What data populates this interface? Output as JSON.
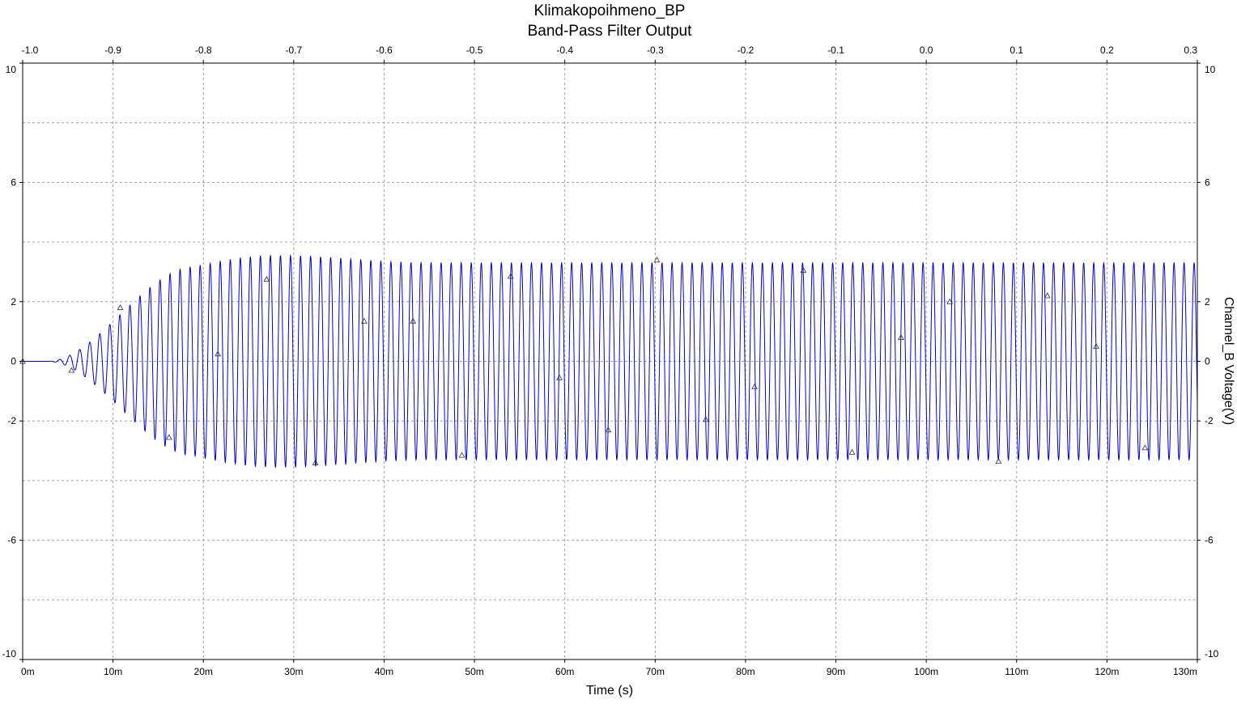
{
  "chart_data": {
    "type": "line",
    "title": "Klimakopoihmeno_BP",
    "subtitle": "Band-Pass Filter Output",
    "xlabel": "Time (s)",
    "ylabel_right": "Channel_B Voltage(V)",
    "xlim": [
      0,
      0.13
    ],
    "ylim": [
      -10,
      10
    ],
    "x_ticks": [
      {
        "value": 0,
        "label": "0m"
      },
      {
        "value": 0.01,
        "label": "10m"
      },
      {
        "value": 0.02,
        "label": "20m"
      },
      {
        "value": 0.03,
        "label": "30m"
      },
      {
        "value": 0.04,
        "label": "40m"
      },
      {
        "value": 0.05,
        "label": "50m"
      },
      {
        "value": 0.06,
        "label": "60m"
      },
      {
        "value": 0.07,
        "label": "70m"
      },
      {
        "value": 0.08,
        "label": "80m"
      },
      {
        "value": 0.09,
        "label": "90m"
      },
      {
        "value": 0.1,
        "label": "100m"
      },
      {
        "value": 0.11,
        "label": "110m"
      },
      {
        "value": 0.12,
        "label": "120m"
      },
      {
        "value": 0.13,
        "label": "130m"
      }
    ],
    "top_axis": {
      "range": [
        -1.0,
        0.3
      ],
      "ticks": [
        {
          "value": -1.0,
          "label": "-1.0"
        },
        {
          "value": -0.9,
          "label": "-0.9"
        },
        {
          "value": -0.8,
          "label": "-0.8"
        },
        {
          "value": -0.7,
          "label": "-0.7"
        },
        {
          "value": -0.6,
          "label": "-0.6"
        },
        {
          "value": -0.5,
          "label": "-0.5"
        },
        {
          "value": -0.4,
          "label": "-0.4"
        },
        {
          "value": -0.3,
          "label": "-0.3"
        },
        {
          "value": -0.2,
          "label": "-0.2"
        },
        {
          "value": -0.1,
          "label": "-0.1"
        },
        {
          "value": 0.0,
          "label": "0.0"
        },
        {
          "value": 0.1,
          "label": "0.1"
        },
        {
          "value": 0.2,
          "label": "0.2"
        },
        {
          "value": 0.3,
          "label": "0.3"
        }
      ]
    },
    "y_ticks": [
      {
        "value": 10,
        "label": "10"
      },
      {
        "value": 6,
        "label": "6"
      },
      {
        "value": 2,
        "label": "2"
      },
      {
        "value": 0,
        "label": "0"
      },
      {
        "value": -2,
        "label": "-2"
      },
      {
        "value": -6,
        "label": "-6"
      },
      {
        "value": -10,
        "label": "-10"
      }
    ],
    "y_gridlines": [
      10,
      8,
      6,
      4,
      2,
      0,
      -2,
      -4,
      -6,
      -8,
      -10
    ],
    "grid": true,
    "series": [
      {
        "color": "#0000cc",
        "signal": {
          "shape": "sine",
          "frequency_hz": 900,
          "steady_amplitude_v": 3.3,
          "onset_s": 0.0027,
          "rise_end_s": 0.019,
          "peak_overshoot_v": 3.55,
          "peak_time_s": 0.028,
          "settle_s": 0.045
        },
        "marker": "triangle",
        "marker_points": [
          {
            "x": 0.0,
            "y": 0.0
          },
          {
            "x": 0.0054,
            "y": -0.3
          },
          {
            "x": 0.0108,
            "y": 1.8
          },
          {
            "x": 0.0162,
            "y": -2.55
          },
          {
            "x": 0.0216,
            "y": 0.25
          },
          {
            "x": 0.027,
            "y": 2.75
          },
          {
            "x": 0.0324,
            "y": -3.4
          },
          {
            "x": 0.0378,
            "y": 1.35
          },
          {
            "x": 0.0432,
            "y": 1.35
          },
          {
            "x": 0.0486,
            "y": -3.15
          },
          {
            "x": 0.054,
            "y": 2.85
          },
          {
            "x": 0.0594,
            "y": -0.55
          },
          {
            "x": 0.0648,
            "y": -2.3
          },
          {
            "x": 0.0702,
            "y": 3.4
          },
          {
            "x": 0.0756,
            "y": -1.95
          },
          {
            "x": 0.081,
            "y": -0.85
          },
          {
            "x": 0.0864,
            "y": 3.05
          },
          {
            "x": 0.0918,
            "y": -3.05
          },
          {
            "x": 0.0972,
            "y": 0.8
          },
          {
            "x": 0.1026,
            "y": 2.0
          },
          {
            "x": 0.108,
            "y": -3.35
          },
          {
            "x": 0.1134,
            "y": 2.2
          },
          {
            "x": 0.1188,
            "y": 0.5
          },
          {
            "x": 0.1242,
            "y": -2.9
          }
        ]
      }
    ]
  },
  "colors": {
    "background": "#ffffff",
    "axis": "#000000",
    "grid": "#a0a0a0",
    "line": "#0000cc",
    "marker": "#333333"
  }
}
